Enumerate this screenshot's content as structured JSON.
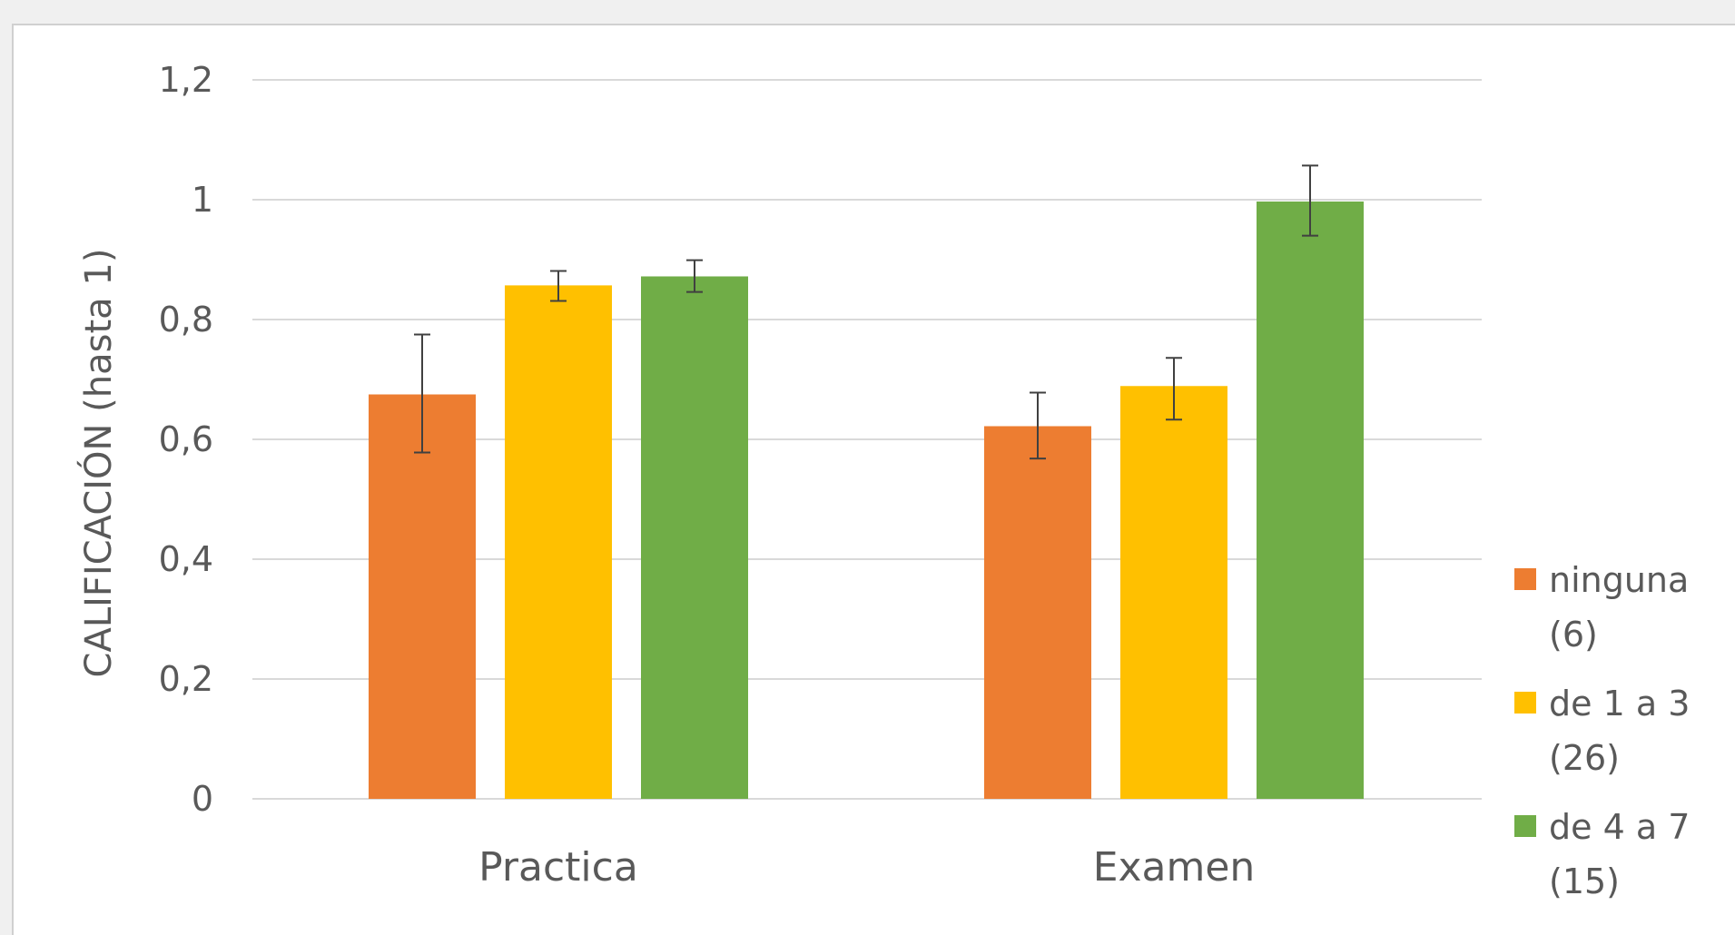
{
  "chart_data": {
    "type": "bar",
    "categories": [
      "Practica",
      "Examen"
    ],
    "series": [
      {
        "name": "ninguna (6)",
        "legend_lines": [
          "ninguna",
          "(6)"
        ],
        "color": "#ED7D31",
        "values": [
          0.675,
          0.622
        ],
        "error_low": [
          0.578,
          0.568
        ],
        "error_high": [
          0.775,
          0.678
        ]
      },
      {
        "name": "de 1 a 3 (26)",
        "legend_lines": [
          "de 1 a 3",
          "(26)"
        ],
        "color": "#FFC000",
        "values": [
          0.857,
          0.689
        ],
        "error_low": [
          0.831,
          0.633
        ],
        "error_high": [
          0.881,
          0.736
        ]
      },
      {
        "name": "de 4 a 7 (15)",
        "legend_lines": [
          "de 4 a 7",
          "(15)"
        ],
        "color": "#70AD47",
        "values": [
          0.872,
          0.997
        ],
        "error_low": [
          0.846,
          0.94
        ],
        "error_high": [
          0.899,
          1.057
        ]
      }
    ],
    "title": "",
    "xlabel": "",
    "ylabel": "CALIFICACIÓN  (hasta 1)",
    "ylim": [
      0,
      1.2
    ],
    "y_ticks": [
      "0",
      "0,2",
      "0,4",
      "0,6",
      "0,8",
      "1",
      "1,2"
    ],
    "y_tick_values": [
      0,
      0.2,
      0.4,
      0.6,
      0.8,
      1.0,
      1.2
    ],
    "grid": true,
    "legend_position": "right"
  }
}
